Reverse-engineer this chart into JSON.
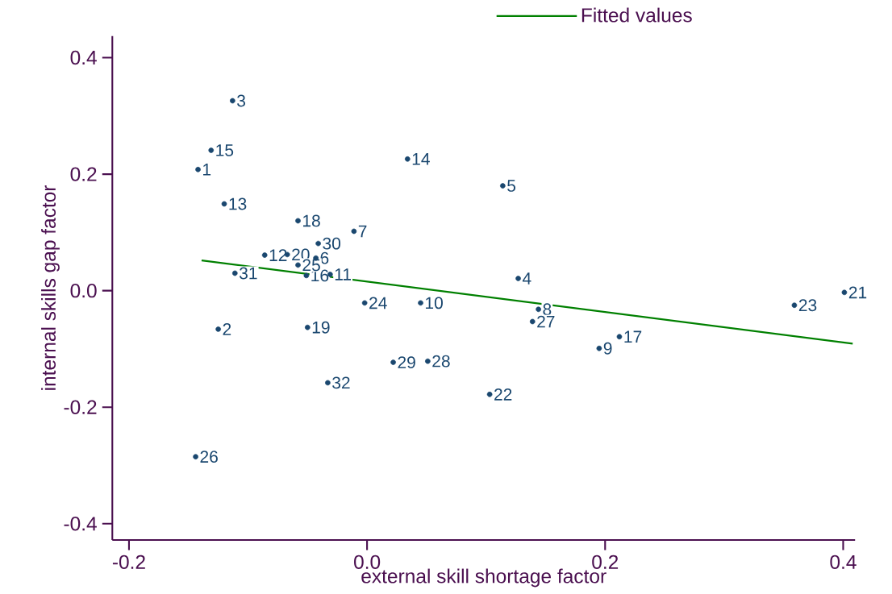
{
  "chart_data": {
    "type": "scatter",
    "xlabel": "external skill shortage factor",
    "ylabel": "internal skills gap factor",
    "xlim": [
      -0.214,
      0.41
    ],
    "ylim": [
      -0.428,
      0.437
    ],
    "xticks": [
      -0.2,
      {
        "value": 0,
        "label": "0.0"
      },
      0.2,
      0.4
    ],
    "yticks": [
      -0.4,
      -0.2,
      {
        "value": 0,
        "label": "0.0"
      },
      0.2,
      0.4
    ],
    "grid": false,
    "legend": "top right",
    "annotations": [
      {
        "text": "1",
        "x": -0.142,
        "y": 0.208
      },
      {
        "text": "2",
        "x": -0.125,
        "y": -0.066
      },
      {
        "text": "3",
        "x": -0.113,
        "y": 0.326
      },
      {
        "text": "4",
        "x": 0.127,
        "y": 0.021
      },
      {
        "text": "5",
        "x": 0.114,
        "y": 0.18
      },
      {
        "text": "6",
        "x": -0.043,
        "y": 0.056
      },
      {
        "text": "7",
        "x": -0.011,
        "y": 0.102
      },
      {
        "text": "8",
        "x": 0.144,
        "y": -0.032
      },
      {
        "text": "9",
        "x": 0.195,
        "y": -0.099
      },
      {
        "text": "10",
        "x": 0.045,
        "y": -0.021
      },
      {
        "text": "11",
        "x": -0.031,
        "y": 0.028
      },
      {
        "text": "12",
        "x": -0.086,
        "y": 0.061
      },
      {
        "text": "13",
        "x": -0.12,
        "y": 0.149
      },
      {
        "text": "14",
        "x": 0.034,
        "y": 0.226
      },
      {
        "text": "15",
        "x": -0.131,
        "y": 0.241
      },
      {
        "text": "16",
        "x": -0.051,
        "y": 0.026
      },
      {
        "text": "17",
        "x": 0.212,
        "y": -0.079
      },
      {
        "text": "18",
        "x": -0.058,
        "y": 0.12
      },
      {
        "text": "19",
        "x": -0.05,
        "y": -0.063
      },
      {
        "text": "20",
        "x": -0.067,
        "y": 0.062
      },
      {
        "text": "21",
        "x": 0.401,
        "y": -0.003
      },
      {
        "text": "22",
        "x": 0.103,
        "y": -0.178
      },
      {
        "text": "23",
        "x": 0.359,
        "y": -0.025
      },
      {
        "text": "24",
        "x": -0.002,
        "y": -0.021
      },
      {
        "text": "25",
        "x": -0.058,
        "y": 0.044
      },
      {
        "text": "26",
        "x": -0.144,
        "y": -0.285
      },
      {
        "text": "27",
        "x": 0.139,
        "y": -0.053
      },
      {
        "text": "28",
        "x": 0.051,
        "y": -0.121
      },
      {
        "text": "29",
        "x": 0.022,
        "y": -0.123
      },
      {
        "text": "30",
        "x": -0.041,
        "y": 0.081
      },
      {
        "text": "31",
        "x": -0.111,
        "y": 0.03
      },
      {
        "text": "32",
        "x": -0.033,
        "y": -0.158
      }
    ],
    "series": [
      {
        "color": "#1a476f",
        "x": [
          -0.142,
          -0.125,
          -0.113,
          0.127,
          0.114,
          -0.043,
          -0.011,
          0.144,
          0.195,
          0.045,
          -0.031,
          -0.086,
          -0.12,
          0.034,
          -0.131,
          -0.051,
          0.212,
          -0.058,
          -0.05,
          -0.067,
          0.401,
          0.103,
          0.359,
          -0.002,
          -0.058,
          -0.144,
          0.139,
          0.051,
          0.022,
          -0.041,
          -0.111,
          -0.033
        ],
        "values": [
          0.208,
          -0.066,
          0.326,
          0.021,
          0.18,
          0.056,
          0.102,
          -0.032,
          -0.099,
          -0.021,
          0.028,
          0.061,
          0.149,
          0.226,
          0.241,
          0.026,
          -0.079,
          0.12,
          -0.063,
          0.062,
          -0.003,
          -0.178,
          -0.025,
          -0.021,
          0.044,
          -0.285,
          -0.053,
          -0.121,
          -0.123,
          0.081,
          0.03,
          -0.158
        ]
      },
      {
        "type": "line",
        "name": "Fitted values",
        "color": "#008000",
        "x": [
          -0.139,
          0.408
        ],
        "values": [
          0.052,
          -0.091
        ]
      }
    ]
  }
}
